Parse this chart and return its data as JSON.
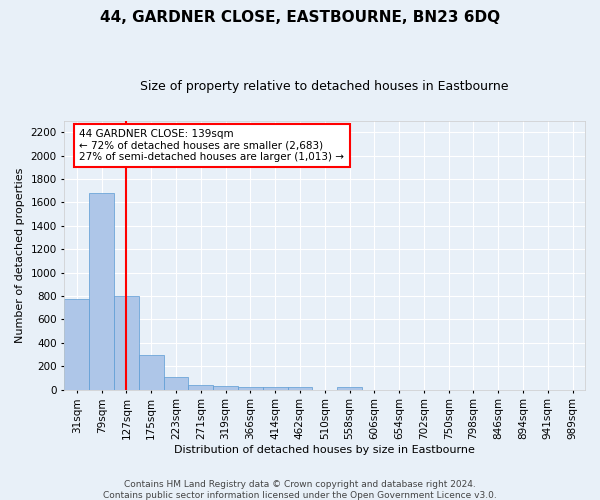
{
  "title": "44, GARDNER CLOSE, EASTBOURNE, BN23 6DQ",
  "subtitle": "Size of property relative to detached houses in Eastbourne",
  "xlabel": "Distribution of detached houses by size in Eastbourne",
  "ylabel": "Number of detached properties",
  "footer_line1": "Contains HM Land Registry data © Crown copyright and database right 2024.",
  "footer_line2": "Contains public sector information licensed under the Open Government Licence v3.0.",
  "annotation_title": "44 GARDNER CLOSE: 139sqm",
  "annotation_line1": "← 72% of detached houses are smaller (2,683)",
  "annotation_line2": "27% of semi-detached houses are larger (1,013) →",
  "categories": [
    "31sqm",
    "79sqm",
    "127sqm",
    "175sqm",
    "223sqm",
    "271sqm",
    "319sqm",
    "366sqm",
    "414sqm",
    "462sqm",
    "510sqm",
    "558sqm",
    "606sqm",
    "654sqm",
    "702sqm",
    "750sqm",
    "798sqm",
    "846sqm",
    "894sqm",
    "941sqm",
    "989sqm"
  ],
  "values": [
    775,
    1680,
    800,
    295,
    110,
    40,
    28,
    22,
    20,
    20,
    0,
    22,
    0,
    0,
    0,
    0,
    0,
    0,
    0,
    0,
    0
  ],
  "bar_color": "#aec6e8",
  "bar_edge_color": "#5b9bd5",
  "red_line_index": 2,
  "ylim": [
    0,
    2300
  ],
  "yticks": [
    0,
    200,
    400,
    600,
    800,
    1000,
    1200,
    1400,
    1600,
    1800,
    2000,
    2200
  ],
  "background_color": "#e8f0f8",
  "plot_background": "#e8f0f8",
  "grid_color": "#ffffff",
  "title_fontsize": 11,
  "subtitle_fontsize": 9,
  "annotation_fontsize": 7.5,
  "footer_fontsize": 6.5,
  "ylabel_fontsize": 8,
  "xlabel_fontsize": 8
}
